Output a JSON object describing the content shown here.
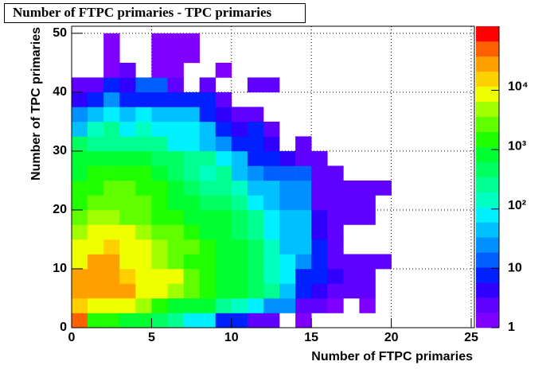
{
  "chart_data": {
    "type": "heatmap",
    "title": "Number of FTPC primaries - TPC primaries",
    "x_label": "Number of FTPC primaries",
    "y_label": "Number of TPC primaries",
    "xbins": [
      0,
      1,
      2,
      3,
      4,
      5,
      6,
      7,
      8,
      9,
      10,
      11,
      12,
      13,
      14,
      15,
      16,
      17,
      18,
      19,
      20
    ],
    "ybins": [
      0,
      2.5,
      5,
      7.5,
      10,
      12.5,
      15,
      17.5,
      20,
      22.5,
      25,
      27.5,
      30,
      32.5,
      35,
      37.5,
      40,
      42.5,
      45,
      47.5,
      50
    ],
    "z": [
      [
        60000,
        1500,
        1200,
        900,
        1000,
        500,
        300,
        100,
        60,
        8,
        6,
        3,
        2,
        null,
        1,
        null,
        null,
        null,
        null,
        null
      ],
      [
        12000,
        9000,
        8000,
        7000,
        4000,
        2000,
        1000,
        900,
        800,
        300,
        150,
        60,
        30,
        25,
        2,
        3,
        1,
        null,
        1,
        null
      ],
      [
        25000,
        25000,
        25000,
        25000,
        10000,
        9000,
        5000,
        3000,
        1500,
        1000,
        800,
        500,
        200,
        40,
        8,
        5,
        3,
        2,
        2,
        null
      ],
      [
        25000,
        25000,
        25000,
        20000,
        10000,
        9000,
        8000,
        3000,
        1500,
        1000,
        800,
        500,
        150,
        60,
        10,
        6,
        4,
        2,
        2,
        null
      ],
      [
        10000,
        25000,
        25000,
        10000,
        9000,
        5000,
        3000,
        2000,
        1200,
        1000,
        800,
        400,
        120,
        80,
        30,
        10,
        2,
        3,
        3,
        2
      ],
      [
        9000,
        9000,
        15000,
        9000,
        8000,
        5000,
        3000,
        2500,
        1200,
        1000,
        800,
        400,
        120,
        50,
        40,
        10,
        2,
        null,
        null,
        null
      ],
      [
        5000,
        7000,
        7000,
        7000,
        5000,
        3000,
        3000,
        1500,
        1000,
        900,
        500,
        200,
        100,
        40,
        40,
        5,
        2,
        null,
        null,
        null
      ],
      [
        3000,
        4000,
        4000,
        3000,
        3000,
        1500,
        1200,
        1000,
        1000,
        800,
        500,
        200,
        80,
        40,
        40,
        4,
        2,
        2,
        3,
        null
      ],
      [
        1500,
        3000,
        3000,
        3000,
        2500,
        1500,
        1000,
        800,
        500,
        400,
        300,
        100,
        40,
        30,
        30,
        3,
        2,
        2,
        2,
        null
      ],
      [
        1200,
        2000,
        2500,
        2500,
        2000,
        1200,
        900,
        500,
        300,
        300,
        150,
        40,
        40,
        30,
        30,
        2,
        3,
        2,
        2,
        2
      ],
      [
        1000,
        1500,
        1500,
        1800,
        1500,
        1000,
        600,
        300,
        150,
        200,
        40,
        30,
        15,
        12,
        15,
        2,
        2,
        null,
        null,
        null
      ],
      [
        800,
        1000,
        1000,
        1000,
        1000,
        600,
        500,
        300,
        300,
        100,
        40,
        10,
        10,
        5,
        2,
        2,
        null,
        null,
        null,
        null
      ],
      [
        400,
        250,
        250,
        250,
        250,
        200,
        100,
        100,
        40,
        30,
        10,
        10,
        4,
        null,
        2,
        null,
        null,
        null,
        null,
        null
      ],
      [
        40,
        150,
        200,
        100,
        150,
        100,
        80,
        60,
        40,
        10,
        4,
        8,
        2,
        null,
        null,
        null,
        null,
        null,
        null,
        null
      ],
      [
        30,
        40,
        80,
        40,
        80,
        40,
        40,
        40,
        10,
        5,
        2,
        2,
        null,
        null,
        null,
        null,
        null,
        null,
        null,
        null
      ],
      [
        4,
        10,
        30,
        10,
        10,
        10,
        10,
        6,
        10,
        2,
        null,
        null,
        null,
        null,
        null,
        null,
        null,
        null,
        null,
        null
      ],
      [
        2,
        3,
        6,
        4,
        12,
        12,
        3,
        null,
        2,
        null,
        null,
        2,
        2,
        null,
        null,
        null,
        null,
        null,
        null,
        null
      ],
      [
        null,
        null,
        1,
        2,
        null,
        1,
        1,
        null,
        null,
        1,
        null,
        null,
        null,
        null,
        null,
        null,
        null,
        null,
        null,
        null
      ],
      [
        null,
        null,
        1,
        null,
        null,
        1,
        1,
        1,
        null,
        null,
        null,
        null,
        null,
        null,
        null,
        null,
        null,
        null,
        null,
        null
      ],
      [
        null,
        null,
        1,
        null,
        null,
        1,
        1,
        1,
        null,
        null,
        null,
        null,
        null,
        null,
        null,
        null,
        null,
        null,
        null,
        null
      ]
    ],
    "xlim": [
      0,
      25.2
    ],
    "ylim": [
      0,
      51.2
    ],
    "xticks": [
      0,
      5,
      10,
      15,
      20,
      25
    ],
    "yticks": [
      0,
      10,
      20,
      30,
      40,
      50
    ],
    "zlim": [
      1,
      120000
    ],
    "zscale": "log",
    "zticks": [
      1,
      10,
      {
        "value": 100,
        "label": "10²"
      },
      {
        "value": 1000,
        "label": "10³"
      },
      {
        "value": 10000,
        "label": "10⁴"
      }
    ],
    "grid": true,
    "palette": [
      "#8000ff",
      "#6000ff",
      "#3000ff",
      "#0020ff",
      "#0060ff",
      "#0090ff",
      "#00c0ff",
      "#00f0ff",
      "#00ffc0",
      "#00ff90",
      "#00ff60",
      "#00ff30",
      "#20ff00",
      "#60ff00",
      "#a0ff00",
      "#f0ff00",
      "#ffd000",
      "#ffa000",
      "#ff6000",
      "#ff0000"
    ]
  }
}
